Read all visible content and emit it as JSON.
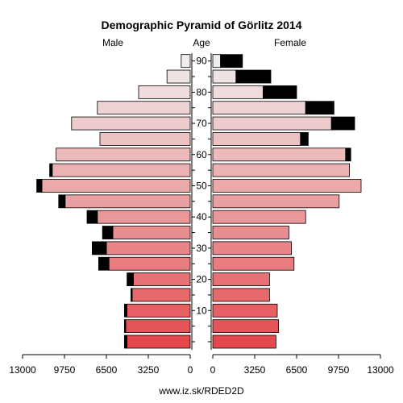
{
  "chart_data": {
    "type": "bar",
    "title": "Demographic Pyramid of Görlitz 2014",
    "left_label": "Male",
    "center_label": "Age",
    "right_label": "Female",
    "source": "www.iz.sk/RDED2D",
    "age_groups": [
      "0-4",
      "5-9",
      "10-14",
      "15-19",
      "20-24",
      "25-29",
      "30-34",
      "35-39",
      "40-44",
      "45-49",
      "50-54",
      "55-59",
      "60-64",
      "65-69",
      "70-74",
      "75-79",
      "80-84",
      "85-89",
      "90+"
    ],
    "age_ticks": [
      10,
      20,
      30,
      40,
      50,
      60,
      70,
      80,
      90
    ],
    "x_ticks_left": [
      "13000",
      "9750",
      "6500",
      "3250",
      "0"
    ],
    "x_ticks_right": [
      "0",
      "3250",
      "6500",
      "9750",
      "13000"
    ],
    "xlim": [
      0,
      13000
    ],
    "series": [
      {
        "name": "Male",
        "values": [
          4900,
          5000,
          4900,
          4500,
          4400,
          6300,
          6500,
          6000,
          7200,
          9700,
          11500,
          10700,
          10400,
          7000,
          9200,
          7200,
          4000,
          1800,
          700
        ]
      },
      {
        "name": "Male",
        "values": [
          200,
          100,
          200,
          100,
          500,
          800,
          1100,
          800,
          800,
          500,
          400,
          200,
          0,
          0,
          0,
          0,
          0,
          0,
          0
        ]
      },
      {
        "name": "Female",
        "values": [
          4900,
          5100,
          5000,
          4400,
          4400,
          6300,
          6100,
          5900,
          7200,
          9800,
          11500,
          10600,
          10300,
          6800,
          9200,
          7200,
          3900,
          1800,
          600
        ]
      },
      {
        "name": "Female",
        "values": [
          0,
          0,
          0,
          0,
          0,
          0,
          0,
          0,
          0,
          0,
          0,
          0,
          400,
          600,
          1800,
          2200,
          2600,
          2700,
          1700
        ]
      }
    ]
  }
}
